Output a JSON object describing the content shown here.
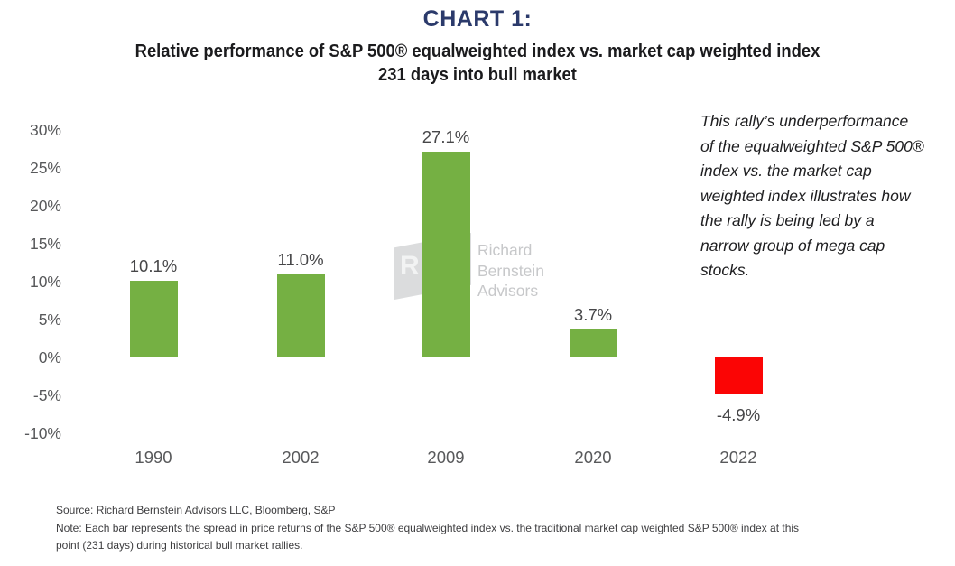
{
  "header": {
    "chart_label": "CHART 1:",
    "subtitle_line1": "Relative performance of S&P 500® equalweighted index vs. market cap weighted index",
    "subtitle_line2": "231 days into bull market"
  },
  "chart_data": {
    "type": "bar",
    "title": "Relative performance of S&P 500® equalweighted index vs. market cap weighted index 231 days into bull market",
    "xlabel": "",
    "ylabel": "",
    "categories": [
      "1990",
      "2002",
      "2009",
      "2020",
      "2022"
    ],
    "values": [
      10.1,
      11.0,
      27.1,
      3.7,
      -4.9
    ],
    "value_labels": [
      "10.1%",
      "11.0%",
      "27.1%",
      "3.7%",
      "-4.9%"
    ],
    "bar_colors": [
      "#75b043",
      "#75b043",
      "#75b043",
      "#75b043",
      "#fb0505"
    ],
    "y_tick_values": [
      30,
      25,
      20,
      15,
      10,
      5,
      0,
      -5,
      -10
    ],
    "y_tick_labels": [
      "30%",
      "25%",
      "20%",
      "15%",
      "10%",
      "5%",
      "0%",
      "-5%",
      "-10%"
    ],
    "ylim": [
      -10,
      30
    ],
    "grid": false,
    "legend_position": "none"
  },
  "annotation": {
    "lines": [
      "This rally’s underperformance",
      "of the equalweighted S&P 500®",
      "index vs. the market cap",
      "weighted index illustrates how",
      "the rally is being led by a",
      "narrow group of mega cap",
      "stocks."
    ]
  },
  "watermark": {
    "logo_text": "RB",
    "lines": [
      "Richard",
      "Bernstein",
      "Advisors"
    ]
  },
  "footer": {
    "source": "Source: Richard Bernstein Advisors LLC, Bloomberg, S&P",
    "note": "Note: Each bar represents the spread in price returns of the S&P 500® equalweighted index vs. the traditional market cap weighted S&P 500® index at this point (231 days) during historical bull market rallies."
  },
  "colors": {
    "title_navy": "#2b3a6b",
    "bar_green": "#75b043",
    "bar_red": "#fb0505",
    "axis_text_gray": "#58595b",
    "value_label_gray": "#464648",
    "watermark_gray": "#c7c8ca"
  }
}
